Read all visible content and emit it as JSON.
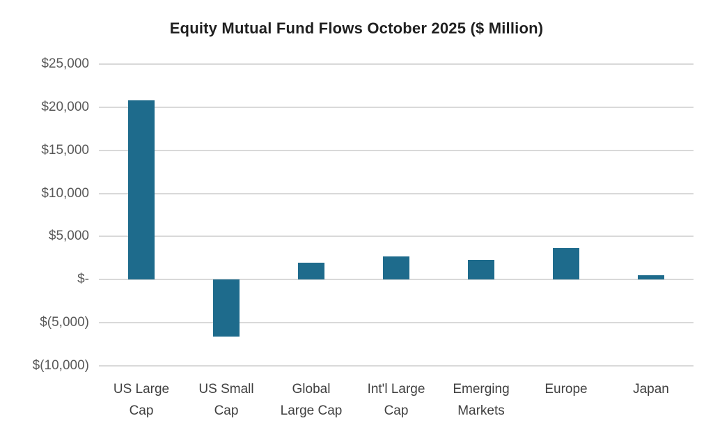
{
  "title": "Equity Mutual Fund Flows October 2025 ($ Million)",
  "colors": {
    "bar": "#1e6b8c",
    "gridline": "#d9d9d9",
    "y_tick_label": "#595959",
    "x_tick_label": "#404040",
    "title": "#1f1f1f",
    "background": "#ffffff"
  },
  "chart_data": {
    "type": "bar",
    "title": "Equity Mutual Fund Flows October 2025 ($ Million)",
    "unit": "$ Million",
    "categories": [
      "US Large Cap",
      "US Small Cap",
      "Global Large Cap",
      "Int'l Large Cap",
      "Emerging Markets",
      "Europe",
      "Japan"
    ],
    "category_label_lines": [
      [
        "US Large",
        "Cap"
      ],
      [
        "US Small",
        "Cap"
      ],
      [
        "Global",
        "Large Cap"
      ],
      [
        "Int'l Large",
        "Cap"
      ],
      [
        "Emerging",
        "Markets"
      ],
      [
        "Europe"
      ],
      [
        "Japan"
      ]
    ],
    "values": [
      20800,
      -6600,
      2000,
      2700,
      2300,
      3700,
      500
    ],
    "xlabel": "",
    "ylabel": "",
    "ylim": [
      -10000,
      25000
    ],
    "ytick_step": 5000,
    "yticks": [
      {
        "value": 25000,
        "label": "$25,000"
      },
      {
        "value": 20000,
        "label": "$20,000"
      },
      {
        "value": 15000,
        "label": "$15,000"
      },
      {
        "value": 10000,
        "label": "$10,000"
      },
      {
        "value": 5000,
        "label": "$5,000"
      },
      {
        "value": 0,
        "label": "$-"
      },
      {
        "value": -5000,
        "label": "$(5,000)"
      },
      {
        "value": -10000,
        "label": "$(10,000)"
      }
    ],
    "grid": true,
    "legend": false
  }
}
